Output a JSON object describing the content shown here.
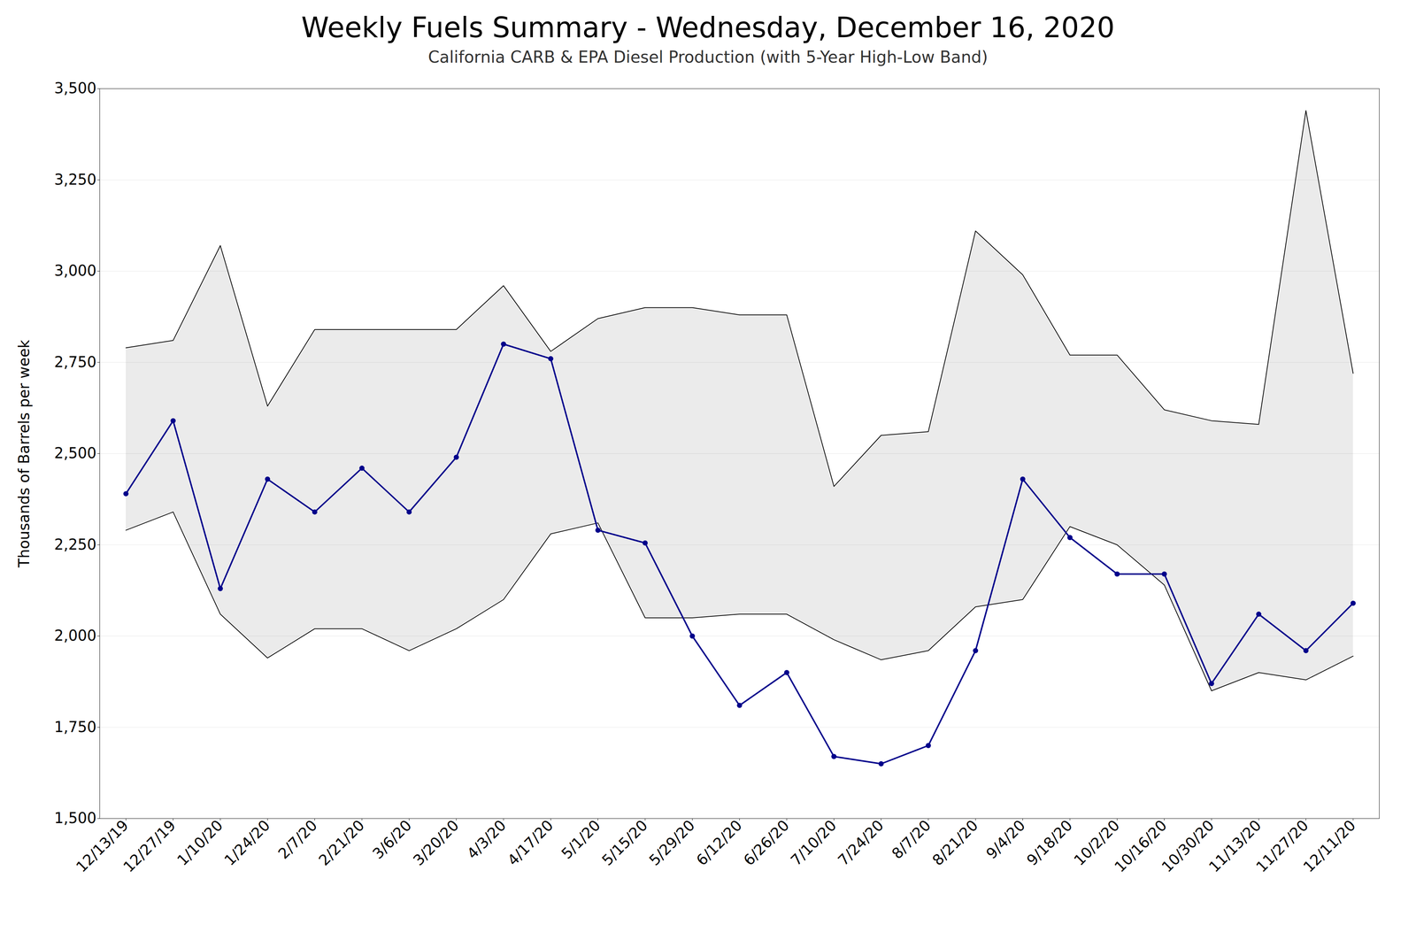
{
  "chart_data": {
    "type": "line",
    "title": "Weekly Fuels Summary - Wednesday, December 16, 2020",
    "subtitle": "California CARB & EPA Diesel Production (with 5-Year High-Low Band)",
    "ylabel": "Thousands of Barrels per week",
    "categories": [
      "12/13/19",
      "12/27/19",
      "1/10/20",
      "1/24/20",
      "2/7/20",
      "2/21/20",
      "3/6/20",
      "3/20/20",
      "4/3/20",
      "4/17/20",
      "5/1/20",
      "5/15/20",
      "5/29/20",
      "6/12/20",
      "6/26/20",
      "7/10/20",
      "7/24/20",
      "8/7/20",
      "8/21/20",
      "9/4/20",
      "9/18/20",
      "10/2/20",
      "10/16/20",
      "10/30/20",
      "11/13/20",
      "11/27/20",
      "12/11/20"
    ],
    "values": [
      2390,
      2590,
      2130,
      2430,
      2340,
      2460,
      2340,
      2490,
      2800,
      2760,
      2290,
      2255,
      2000,
      1810,
      1900,
      1670,
      1650,
      1700,
      1960,
      2430,
      2270,
      2170,
      2170,
      1870,
      2060,
      1960,
      2090
    ],
    "band_high": [
      2790,
      2810,
      3070,
      2630,
      2840,
      2840,
      2840,
      2840,
      2960,
      2780,
      2870,
      2900,
      2900,
      2880,
      2880,
      2410,
      2550,
      2560,
      3110,
      2990,
      2770,
      2770,
      2620,
      2590,
      2580,
      3440,
      2720
    ],
    "band_low": [
      2290,
      2340,
      2060,
      1940,
      2020,
      2020,
      1960,
      2020,
      2100,
      2280,
      2310,
      2050,
      2050,
      2060,
      2060,
      1990,
      1935,
      1960,
      2080,
      2100,
      2300,
      2250,
      2140,
      1850,
      1900,
      1880,
      1945
    ],
    "color": "#00008B",
    "marker": "circle",
    "ylim": [
      1500,
      3500
    ],
    "yticks": [
      {
        "value": 1500,
        "label": "1,500"
      },
      {
        "value": 1750,
        "label": "1,750"
      },
      {
        "value": 2000,
        "label": "2,000"
      },
      {
        "value": 2250,
        "label": "2,250"
      },
      {
        "value": 2500,
        "label": "2,500"
      },
      {
        "value": 2750,
        "label": "2,750"
      },
      {
        "value": 3000,
        "label": "3,000"
      },
      {
        "value": 3250,
        "label": "3,250"
      },
      {
        "value": 3500,
        "label": "3,500"
      }
    ],
    "grid": true
  }
}
